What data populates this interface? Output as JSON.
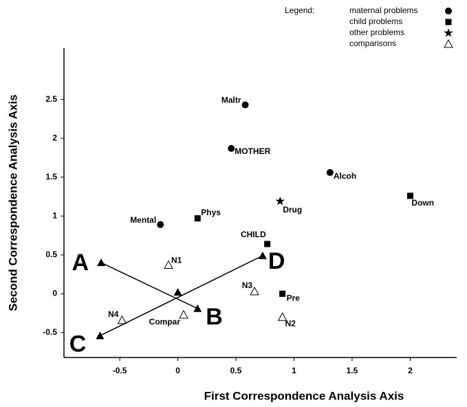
{
  "chart_data": {
    "type": "scatter",
    "xlabel": "First Correspondence Analysis Axis",
    "ylabel": "Second Correspondence Analysis Axis",
    "legend_title": "Legend:",
    "legend": "top-right",
    "xlim": [
      -0.98,
      2.4
    ],
    "ylim": [
      -0.82,
      3.16
    ],
    "xticks": [
      -0.5,
      0,
      0.5,
      1,
      1.5,
      2
    ],
    "yticks": [
      -0.5,
      0,
      0.5,
      1,
      1.5,
      2,
      2.5
    ],
    "series": [
      {
        "name": "maternal problems",
        "marker": "circle",
        "color": "#000000",
        "points": [
          {
            "label": "Maltr",
            "x": 0.58,
            "y": 2.43
          },
          {
            "label": "MOTHER",
            "x": 0.46,
            "y": 1.87
          },
          {
            "label": "Alcoh",
            "x": 1.31,
            "y": 1.56
          },
          {
            "label": "Mental",
            "x": -0.15,
            "y": 0.89
          }
        ]
      },
      {
        "name": "child problems",
        "marker": "square",
        "color": "#000000",
        "points": [
          {
            "label": "Phys",
            "x": 0.17,
            "y": 0.97
          },
          {
            "label": "Down",
            "x": 2.0,
            "y": 1.26
          },
          {
            "label": "CHILD",
            "x": 0.77,
            "y": 0.64
          },
          {
            "label": "Pre",
            "x": 0.9,
            "y": 0.0
          }
        ]
      },
      {
        "name": "other problems",
        "marker": "star",
        "color": "#000000",
        "points": [
          {
            "label": "Drug",
            "x": 0.88,
            "y": 1.19
          }
        ]
      },
      {
        "name": "comparisons",
        "marker": "open-triangle",
        "color": "#000000",
        "points": [
          {
            "label": "N1",
            "x": -0.08,
            "y": 0.37
          },
          {
            "label": "N3",
            "x": 0.66,
            "y": 0.03
          },
          {
            "label": "N2",
            "x": 0.9,
            "y": -0.3
          },
          {
            "label": "N4",
            "x": -0.48,
            "y": -0.34
          },
          {
            "label": "Compar",
            "x": 0.05,
            "y": -0.27
          }
        ]
      }
    ],
    "endpoints": [
      {
        "label": "A",
        "x": -0.66,
        "y": 0.4
      },
      {
        "label": "B",
        "x": 0.17,
        "y": -0.19
      },
      {
        "label": "C",
        "x": -0.67,
        "y": -0.54
      },
      {
        "label": "D",
        "x": 0.73,
        "y": 0.49
      }
    ],
    "center": {
      "x": 0,
      "y": 0.02
    }
  }
}
